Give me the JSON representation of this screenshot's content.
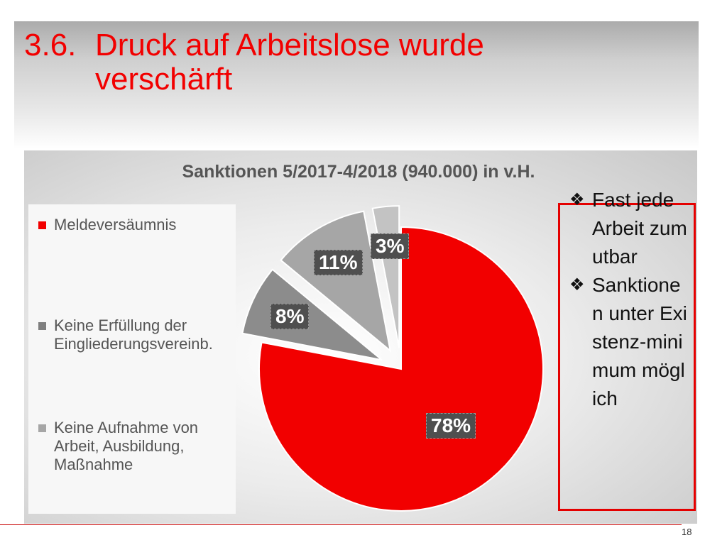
{
  "slide": {
    "title_number": "3.6.",
    "title_line1": "Druck auf Arbeitslose wurde",
    "title_line2": "verschärft",
    "page_number": "18"
  },
  "chart_data": {
    "type": "pie",
    "title": "Sanktionen 5/2017-4/2018 (940.000) in v.H.",
    "slices": [
      {
        "name": "Meldeversäumnis",
        "value": 78,
        "label": "78%",
        "color": "#f20000",
        "exploded": false
      },
      {
        "name": "Keine Erfüllung der Eingliederungsvereinb.",
        "value": 8,
        "label": "8%",
        "color": "#8c8c8c",
        "exploded": true
      },
      {
        "name": "Keine Aufnahme von Arbeit, Ausbildung, Maßnahme",
        "value": 11,
        "label": "11%",
        "color": "#a6a6a6",
        "exploded": true
      },
      {
        "name": "",
        "value": 3,
        "label": "3%",
        "color": "#c3c3c3",
        "exploded": true
      }
    ],
    "legend": {
      "placement": "left",
      "entries": [
        {
          "text": "Meldeversäumnis",
          "color": "#f20000"
        },
        {
          "text": "Keine Erfüllung der Eingliederungsvereinb.",
          "color": "#7f7f7f"
        },
        {
          "text": "Keine Aufnahme von Arbeit, Ausbildung, Maßnahme",
          "color": "#a6a6a6"
        }
      ]
    }
  },
  "bullets": [
    {
      "symbol": "❖",
      "text": "Fast jede Arbeit zumutbar"
    },
    {
      "symbol": "❖",
      "text": "Sanktionen unter Existenz-minimum möglich"
    }
  ]
}
